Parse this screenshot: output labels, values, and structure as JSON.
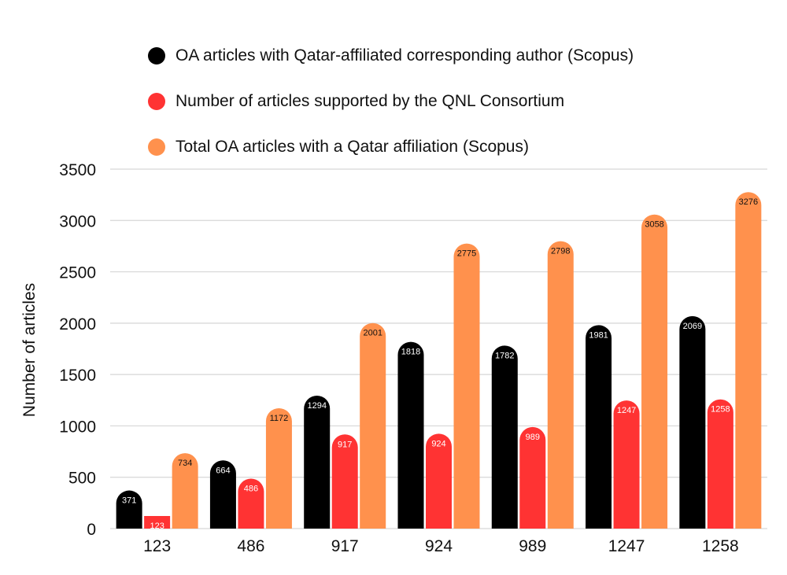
{
  "chart_data": {
    "type": "bar",
    "title": "",
    "xlabel": "",
    "ylabel": "Number of articles",
    "ylim": [
      0,
      3500
    ],
    "yticks": [
      0,
      500,
      1000,
      1500,
      2000,
      2500,
      3000,
      3500
    ],
    "grid": true,
    "legend_position": "top",
    "categories": [
      "123",
      "486",
      "917",
      "924",
      "989",
      "1247",
      "1258"
    ],
    "series": [
      {
        "name": "OA articles with Qatar-affiliated corresponding author (Scopus)",
        "color": "#000000",
        "label_color": "#ffffff",
        "values": [
          371,
          664,
          1294,
          1818,
          1782,
          1981,
          2069
        ]
      },
      {
        "name": "Number of articles supported by the QNL Consortium",
        "color": "#ff3333",
        "label_color": "#ffffff",
        "values": [
          123,
          486,
          917,
          924,
          989,
          1247,
          1258
        ]
      },
      {
        "name": "Total OA articles with a Qatar affiliation (Scopus)",
        "color": "#ff914d",
        "label_color": "#111111",
        "values": [
          734,
          1172,
          2001,
          2775,
          2798,
          3058,
          3276
        ]
      }
    ]
  }
}
